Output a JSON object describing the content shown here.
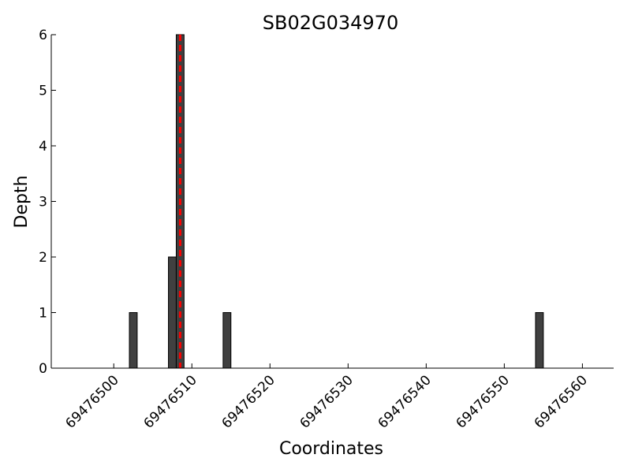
{
  "chart_data": {
    "type": "bar",
    "title": "SB02G034970",
    "xlabel": "Coordinates",
    "ylabel": "Depth",
    "xlim": [
      69476492,
      69476564
    ],
    "ylim": [
      0,
      6
    ],
    "xticks": [
      69476500,
      69476510,
      69476520,
      69476530,
      69476540,
      69476550,
      69476560
    ],
    "yticks": [
      0,
      1,
      2,
      3,
      4,
      5,
      6
    ],
    "bar_width": 1,
    "grid": false,
    "series": [
      {
        "x": [
          69476502,
          69476507,
          69476508,
          69476514,
          69476554
        ],
        "values": [
          1,
          2,
          6,
          1,
          1
        ]
      }
    ],
    "marker_line": {
      "x": 69476508.5,
      "style": "dashed",
      "color": "#ff0000"
    },
    "colors": {
      "bar_fill": "#404040",
      "bar_edge": "#000000"
    }
  }
}
